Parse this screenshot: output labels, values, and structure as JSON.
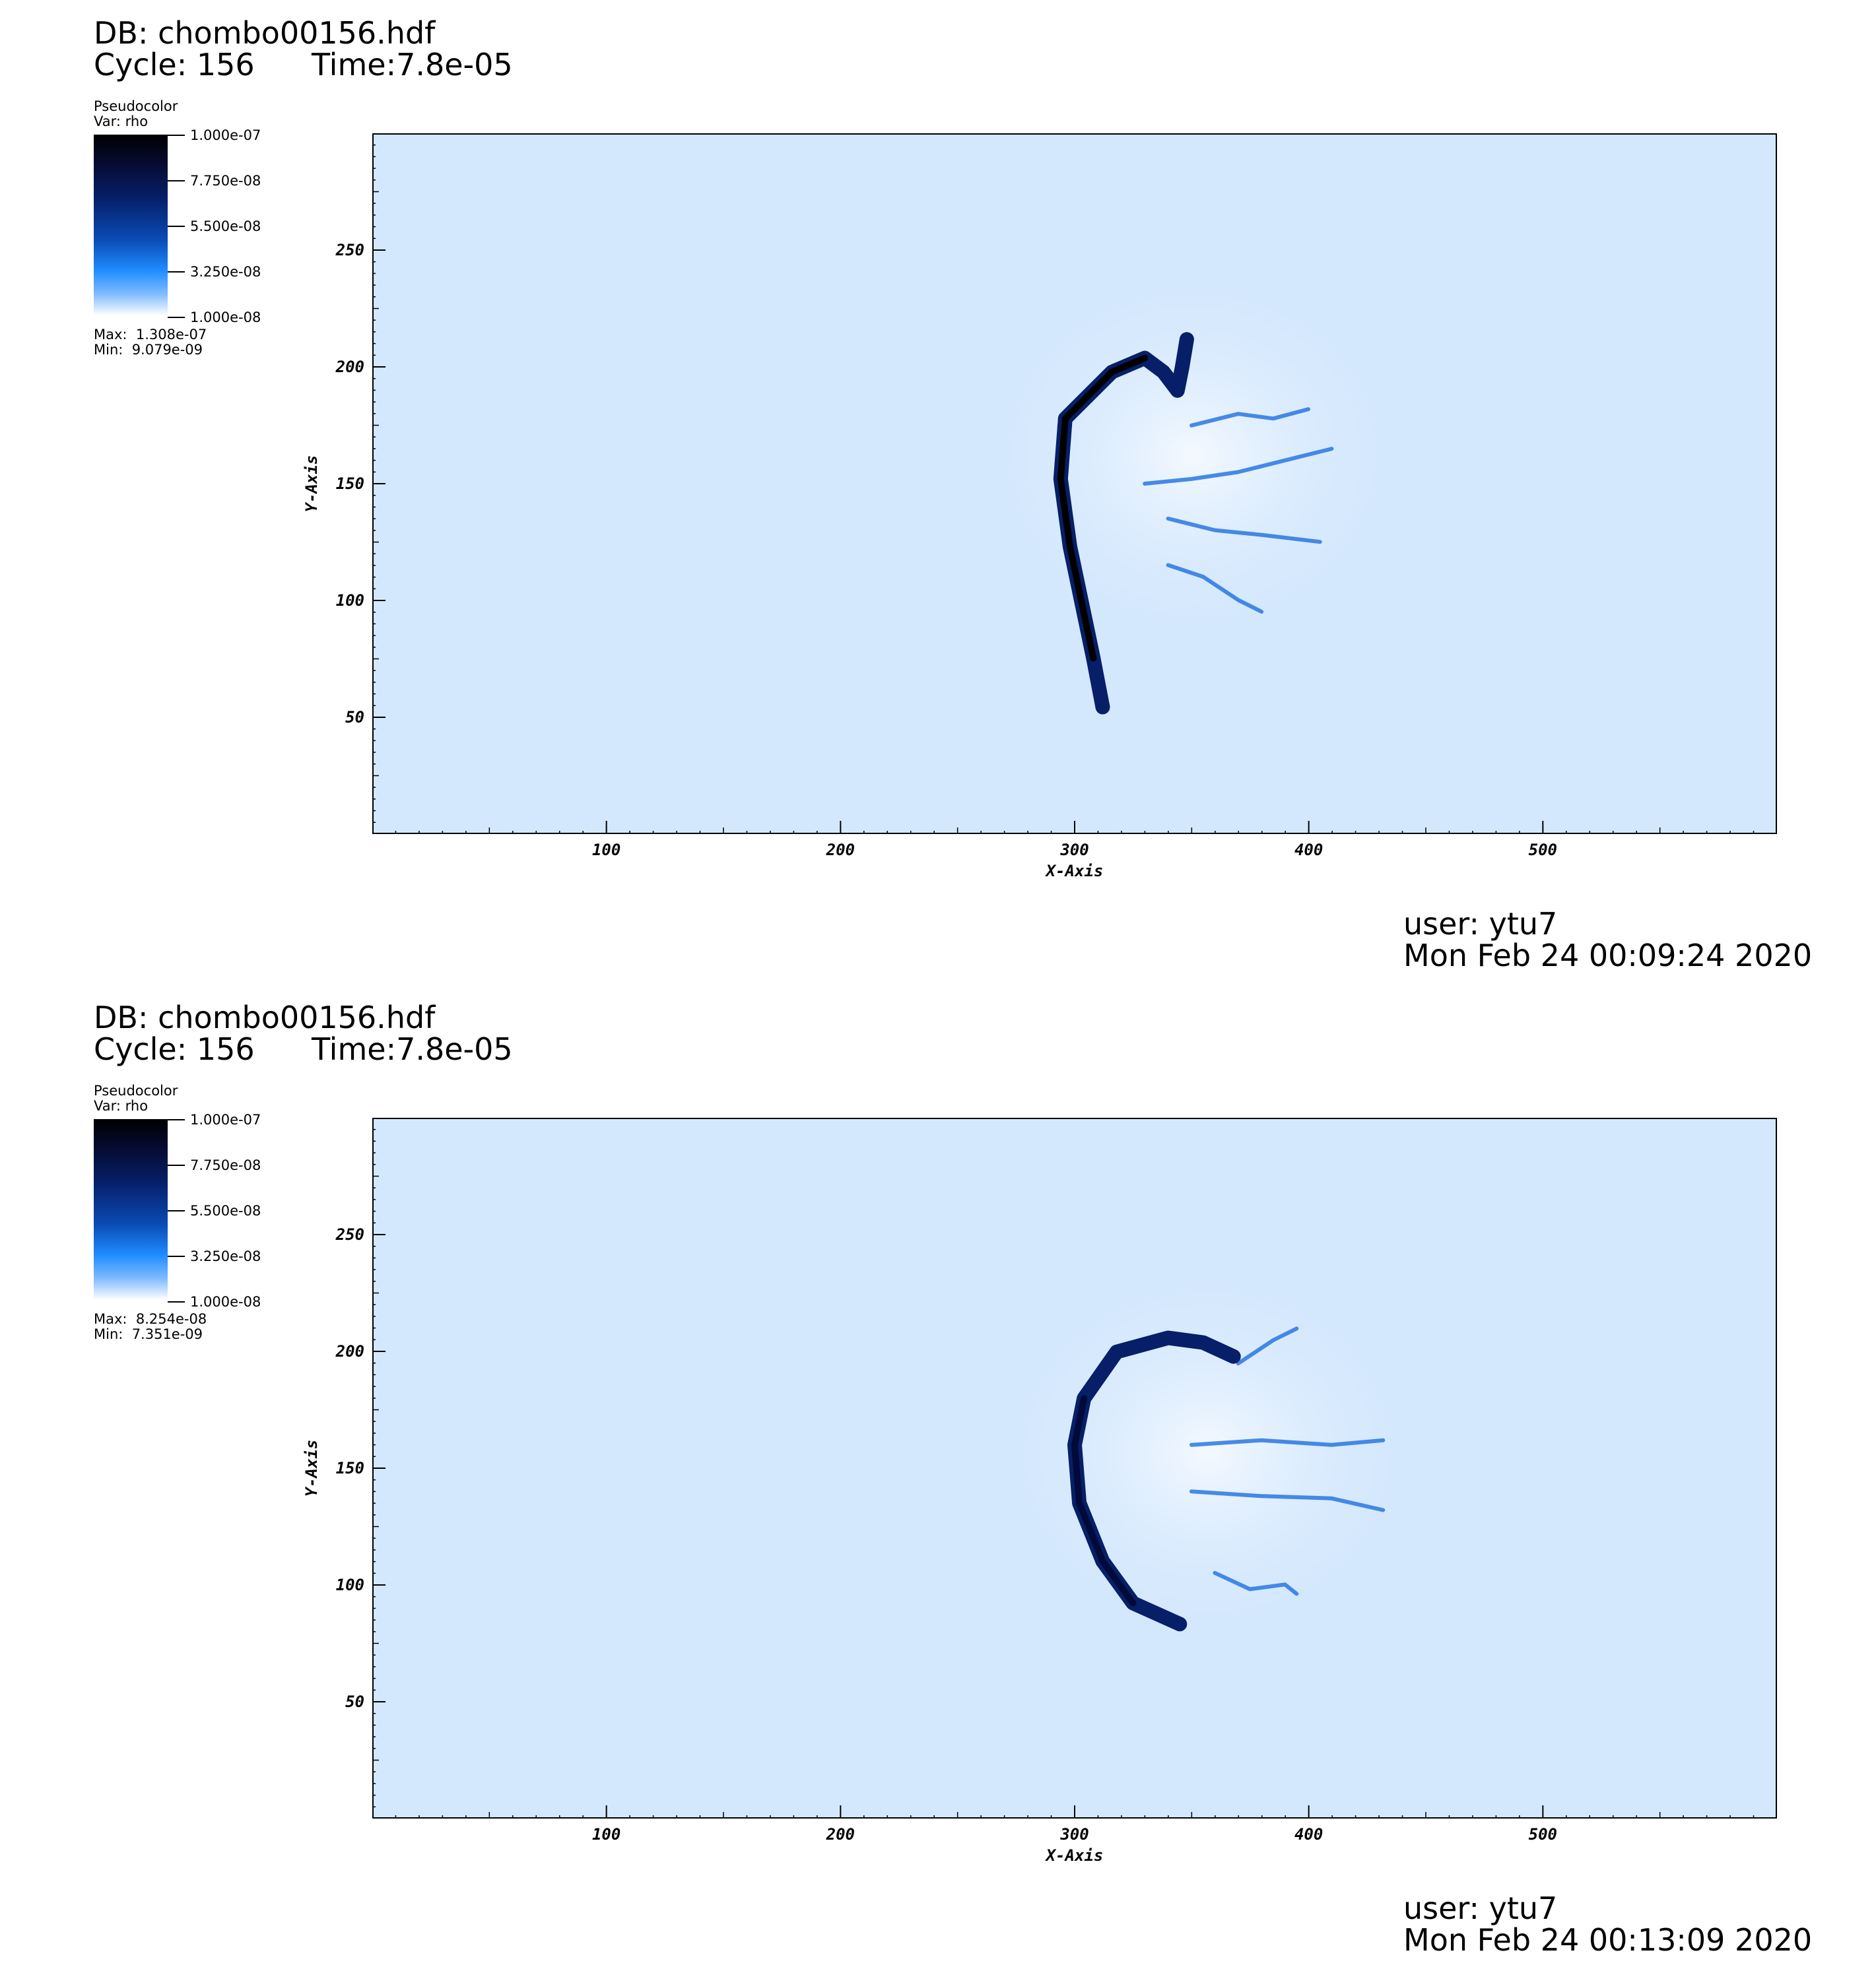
{
  "panels": [
    {
      "db": "DB: chombo00156.hdf",
      "cycle": "Cycle: 156",
      "time": "Time:7.8e-05",
      "legend": {
        "title": "Pseudocolor",
        "var": "Var: rho",
        "ticks": [
          "1.000e-07",
          "7.750e-08",
          "5.500e-08",
          "3.250e-08",
          "1.000e-08"
        ],
        "max": "Max:  1.308e-07",
        "min": "Min:  9.079e-09"
      },
      "user": "user: ytu7",
      "date": "Mon Feb 24 00:09:24 2020",
      "chart_data": {
        "type": "heatmap",
        "variable": "rho",
        "xlabel": "X-Axis",
        "ylabel": "Y-Axis",
        "xlim": [
          0,
          600
        ],
        "ylim": [
          0,
          300
        ],
        "xticks": [
          100,
          200,
          300,
          400,
          500
        ],
        "yticks": [
          50,
          100,
          150,
          200,
          250
        ],
        "colorbar_range": [
          1e-08,
          1e-07
        ],
        "data_max": 1.308e-07,
        "data_min": 9.079e-09,
        "colors": {
          "background": "#d4e8fd",
          "front": "#061f68",
          "peak": "#000000",
          "filament": "#1e6fe0"
        },
        "front_curve": [
          [
            312,
            54
          ],
          [
            308,
            75
          ],
          [
            298,
            123
          ],
          [
            294,
            152
          ],
          [
            296,
            178
          ],
          [
            316,
            198
          ],
          [
            330,
            204
          ],
          [
            338,
            198
          ],
          [
            344,
            190
          ],
          [
            346,
            200
          ],
          [
            348,
            212
          ]
        ],
        "filaments": [
          [
            [
              330,
              150
            ],
            [
              350,
              152
            ],
            [
              370,
              155
            ],
            [
              390,
              160
            ],
            [
              410,
              165
            ]
          ],
          [
            [
              340,
              135
            ],
            [
              360,
              130
            ],
            [
              380,
              128
            ],
            [
              405,
              125
            ]
          ],
          [
            [
              350,
              175
            ],
            [
              370,
              180
            ],
            [
              385,
              178
            ],
            [
              400,
              182
            ]
          ],
          [
            [
              340,
              115
            ],
            [
              355,
              110
            ],
            [
              370,
              100
            ],
            [
              380,
              95
            ]
          ]
        ]
      }
    },
    {
      "db": "DB: chombo00156.hdf",
      "cycle": "Cycle: 156",
      "time": "Time:7.8e-05",
      "legend": {
        "title": "Pseudocolor",
        "var": "Var: rho",
        "ticks": [
          "1.000e-07",
          "7.750e-08",
          "5.500e-08",
          "3.250e-08",
          "1.000e-08"
        ],
        "max": "Max:  8.254e-08",
        "min": "Min:  7.351e-09"
      },
      "user": "user: ytu7",
      "date": "Mon Feb 24 00:13:09 2020",
      "chart_data": {
        "type": "heatmap",
        "variable": "rho",
        "xlabel": "X-Axis",
        "ylabel": "Y-Axis",
        "xlim": [
          0,
          600
        ],
        "ylim": [
          0,
          300
        ],
        "xticks": [
          100,
          200,
          300,
          400,
          500
        ],
        "yticks": [
          50,
          100,
          150,
          200,
          250
        ],
        "colorbar_range": [
          1e-08,
          1e-07
        ],
        "data_max": 8.254e-08,
        "data_min": 7.351e-09,
        "colors": {
          "background": "#d4e8fd",
          "front": "#061f68",
          "peak": "#020a3a",
          "filament": "#1e6fe0"
        },
        "front_curve": [
          [
            345,
            83
          ],
          [
            325,
            92
          ],
          [
            312,
            110
          ],
          [
            302,
            135
          ],
          [
            300,
            160
          ],
          [
            304,
            180
          ],
          [
            318,
            200
          ],
          [
            340,
            206
          ],
          [
            355,
            204
          ],
          [
            368,
            198
          ]
        ],
        "filaments": [
          [
            [
              350,
              160
            ],
            [
              380,
              162
            ],
            [
              410,
              160
            ],
            [
              432,
              162
            ]
          ],
          [
            [
              350,
              140
            ],
            [
              380,
              138
            ],
            [
              410,
              137
            ],
            [
              432,
              132
            ]
          ],
          [
            [
              370,
              195
            ],
            [
              385,
              205
            ],
            [
              395,
              210
            ]
          ],
          [
            [
              360,
              105
            ],
            [
              375,
              98
            ],
            [
              390,
              100
            ],
            [
              395,
              96
            ]
          ]
        ]
      }
    }
  ]
}
